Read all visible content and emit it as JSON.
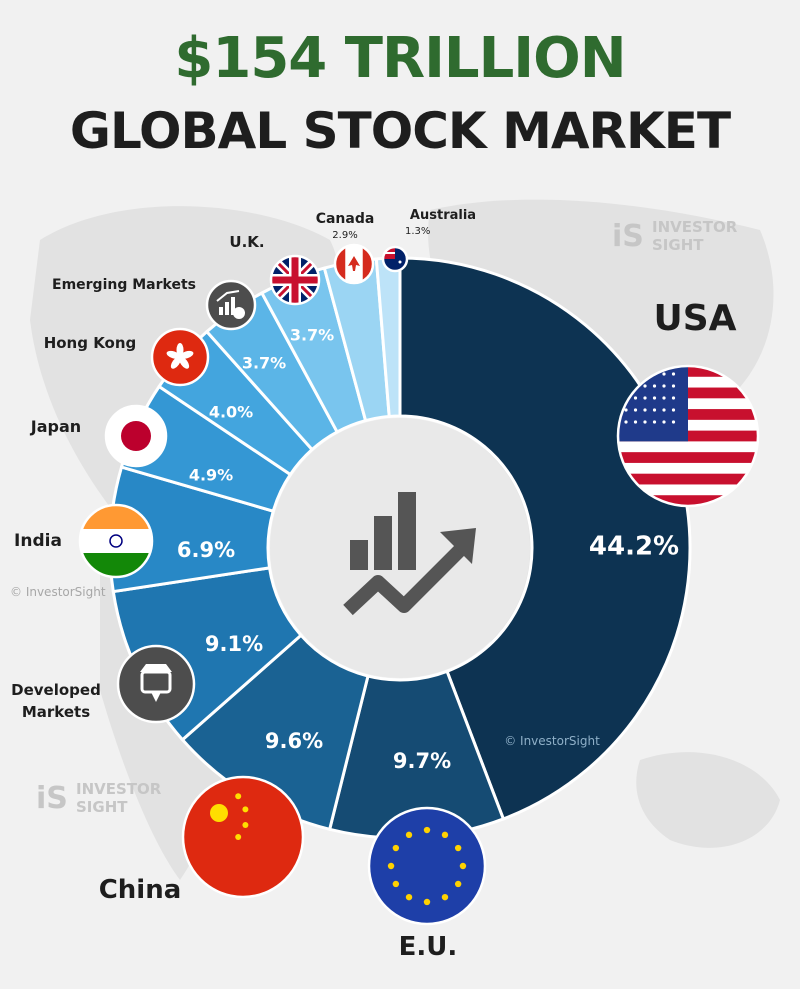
{
  "title": "$154 TRILLION",
  "subtitle": "GLOBAL STOCK MARKET",
  "brand": {
    "line1": "INVESTOR",
    "line2": "SIGHT",
    "logo_mark": "iS",
    "copyright": "© InvestorSight"
  },
  "chart_data": {
    "type": "pie",
    "variant": "donut",
    "unit": "%",
    "center_icon": "rising-bar-chart-icon",
    "slices": [
      {
        "label": "USA",
        "value": 44.2,
        "value_label": "44.2%",
        "color": "#0d3352",
        "icon": "usa-flag-icon"
      },
      {
        "label": "E.U.",
        "value": 9.7,
        "value_label": "9.7%",
        "color": "#154b73",
        "icon": "eu-flag-icon"
      },
      {
        "label": "China",
        "value": 9.6,
        "value_label": "9.6%",
        "color": "#1a6293",
        "icon": "china-flag-icon"
      },
      {
        "label": "Developed Markets",
        "value": 9.1,
        "value_label": "9.1%",
        "color": "#1f76b0",
        "icon": "developed-markets-icon"
      },
      {
        "label": "India",
        "value": 6.9,
        "value_label": "6.9%",
        "color": "#2888c6",
        "icon": "india-flag-icon"
      },
      {
        "label": "Japan",
        "value": 4.9,
        "value_label": "4.9%",
        "color": "#3497d4",
        "icon": "japan-flag-icon"
      },
      {
        "label": "Hong Kong",
        "value": 4.0,
        "value_label": "4.0%",
        "color": "#43a5de",
        "icon": "hong-kong-flag-icon"
      },
      {
        "label": "Emerging Markets",
        "value": 3.7,
        "value_label": "3.7%",
        "color": "#5bb5e7",
        "icon": "emerging-markets-icon"
      },
      {
        "label": "U.K.",
        "value": 3.7,
        "value_label": "3.7%",
        "color": "#79c5ee",
        "icon": "uk-flag-icon"
      },
      {
        "label": "Canada",
        "value": 2.9,
        "value_label": "2.9%",
        "color": "#9bd5f3",
        "icon": "canada-flag-icon"
      },
      {
        "label": "Australia",
        "value": 1.3,
        "value_label": "1.3%",
        "color": "#bde3f8",
        "icon": "australia-flag-icon"
      }
    ]
  }
}
